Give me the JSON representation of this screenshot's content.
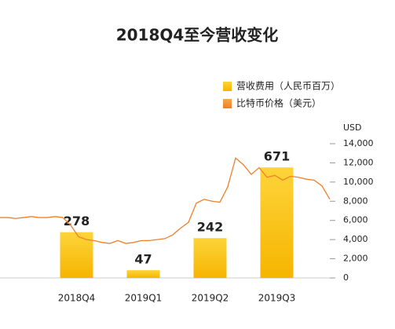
{
  "chart_data": [
    {
      "type": "bar",
      "title": "2018Q4至今营收变化",
      "categories": [
        "2018Q4",
        "2019Q1",
        "2019Q2",
        "2019Q3"
      ],
      "series": [
        {
          "name": "营收费用（人民币百万）",
          "color": "#f9c21c",
          "values": [
            278,
            47,
            242,
            671
          ]
        }
      ],
      "ylim": [
        0,
        815
      ]
    },
    {
      "type": "line",
      "series": [
        {
          "name": "比特币价格（美元）",
          "color": "#f0802c",
          "axis": "y2",
          "values": [
            6300,
            6300,
            6200,
            6300,
            6400,
            6300,
            6300,
            6400,
            6300,
            5500,
            4300,
            4000,
            3900,
            3700,
            3600,
            3900,
            3600,
            3700,
            3900,
            3900,
            4000,
            4100,
            4500,
            5200,
            5800,
            7800,
            8200,
            8000,
            7900,
            9500,
            12500,
            11800,
            10800,
            11500,
            10500,
            10700,
            10200,
            10600,
            10500,
            10300,
            10200,
            9600,
            8200
          ]
        }
      ],
      "y2label": "USD",
      "y2lim": [
        0,
        14000
      ],
      "y2ticks": [
        0,
        {
          "value": 2000,
          "label": "2,000"
        },
        {
          "value": 4000,
          "label": "4,000"
        },
        {
          "value": 6000,
          "label": "6,000"
        },
        {
          "value": 8000,
          "label": "8,000"
        },
        {
          "value": 10000,
          "label": "10,000"
        },
        {
          "value": 12000,
          "label": "12,000"
        },
        {
          "value": 14000,
          "label": "14,000"
        }
      ]
    }
  ]
}
